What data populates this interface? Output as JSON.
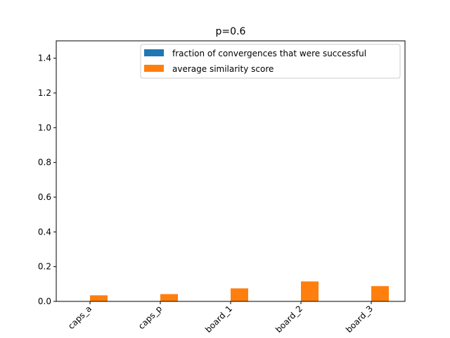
{
  "chart_data": {
    "type": "bar",
    "title": "p=0.6",
    "categories": [
      "caps_a",
      "caps_p",
      "board_1",
      "board_2",
      "board_3"
    ],
    "series": [
      {
        "name": "fraction of convergences that were successful",
        "values": [
          0,
          0,
          0,
          0,
          0
        ],
        "color": "#1f77b4"
      },
      {
        "name": "average similarity score",
        "values": [
          0.035,
          0.042,
          0.075,
          0.115,
          0.088
        ],
        "color": "#ff7f0e"
      }
    ],
    "ylim": [
      0,
      1.5
    ],
    "yticks": [
      "0.0",
      "0.2",
      "0.4",
      "0.6",
      "0.8",
      "1.0",
      "1.2",
      "1.4"
    ],
    "xlabel": "",
    "ylabel": "",
    "grid": false,
    "legend_position": "top-right"
  }
}
